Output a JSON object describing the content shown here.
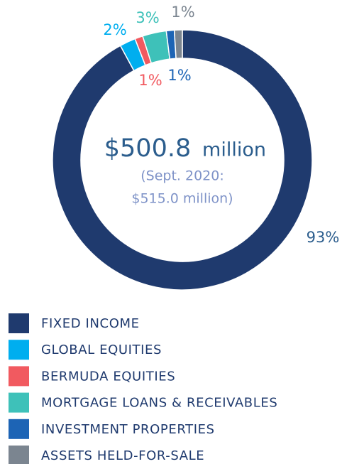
{
  "chart_data": {
    "type": "pie",
    "donut": true,
    "categories": [
      "FIXED INCOME",
      "GLOBAL EQUITIES",
      "BERMUDA EQUITIES",
      "MORTGAGE LOANS & RECEIVABLES",
      "INVESTMENT PROPERTIES",
      "ASSETS HELD-FOR-SALE"
    ],
    "values": [
      93,
      2,
      1,
      3,
      1,
      1
    ],
    "value_labels": [
      "93%",
      "2%",
      "1%",
      "3%",
      "1%",
      "1%"
    ],
    "colors": [
      "#1f3a6e",
      "#00aeef",
      "#f15a60",
      "#3ec1b9",
      "#1d64b5",
      "#7b8590"
    ],
    "label_colors": [
      "#2b5d8d",
      "#00aeef",
      "#f15a60",
      "#3ec1b9",
      "#1d64b5",
      "#7b8590"
    ],
    "center_value": "$500.8",
    "center_unit": "million",
    "center_note": [
      "(Sept. 2020:",
      "$515.0 million)"
    ]
  }
}
